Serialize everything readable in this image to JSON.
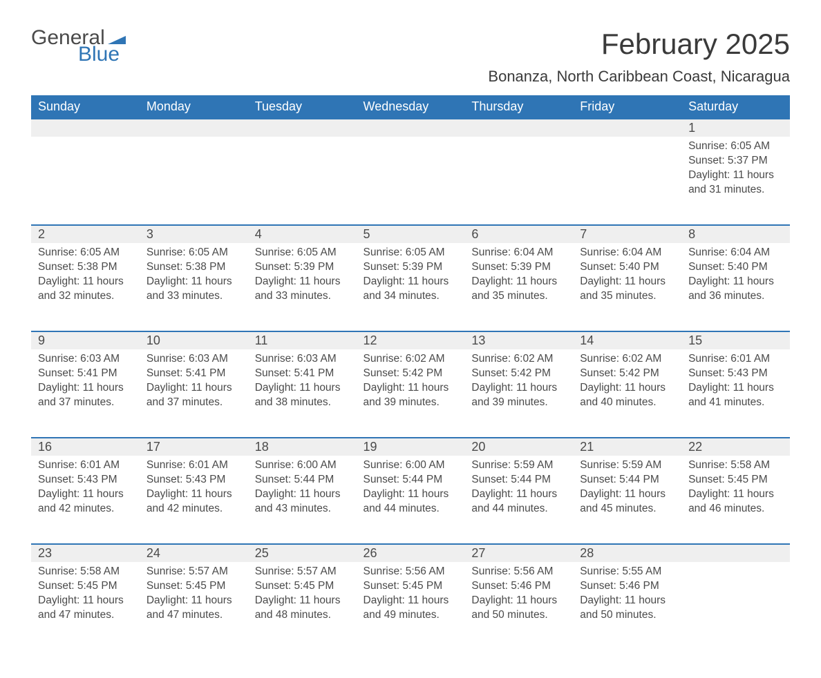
{
  "logo": {
    "text1": "General",
    "text2": "Blue",
    "flag_color": "#2f75b5"
  },
  "title": "February 2025",
  "location": "Bonanza, North Caribbean Coast, Nicaragua",
  "colors": {
    "header_bg": "#2f75b5",
    "header_text": "#ffffff",
    "daynum_bg": "#efefef",
    "daynum_border": "#2f75b5",
    "body_text": "#4a4a4a",
    "page_bg": "#ffffff"
  },
  "weekdays": [
    "Sunday",
    "Monday",
    "Tuesday",
    "Wednesday",
    "Thursday",
    "Friday",
    "Saturday"
  ],
  "weeks": [
    [
      null,
      null,
      null,
      null,
      null,
      null,
      {
        "n": "1",
        "sr": "Sunrise: 6:05 AM",
        "ss": "Sunset: 5:37 PM",
        "dl": "Daylight: 11 hours and 31 minutes."
      }
    ],
    [
      {
        "n": "2",
        "sr": "Sunrise: 6:05 AM",
        "ss": "Sunset: 5:38 PM",
        "dl": "Daylight: 11 hours and 32 minutes."
      },
      {
        "n": "3",
        "sr": "Sunrise: 6:05 AM",
        "ss": "Sunset: 5:38 PM",
        "dl": "Daylight: 11 hours and 33 minutes."
      },
      {
        "n": "4",
        "sr": "Sunrise: 6:05 AM",
        "ss": "Sunset: 5:39 PM",
        "dl": "Daylight: 11 hours and 33 minutes."
      },
      {
        "n": "5",
        "sr": "Sunrise: 6:05 AM",
        "ss": "Sunset: 5:39 PM",
        "dl": "Daylight: 11 hours and 34 minutes."
      },
      {
        "n": "6",
        "sr": "Sunrise: 6:04 AM",
        "ss": "Sunset: 5:39 PM",
        "dl": "Daylight: 11 hours and 35 minutes."
      },
      {
        "n": "7",
        "sr": "Sunrise: 6:04 AM",
        "ss": "Sunset: 5:40 PM",
        "dl": "Daylight: 11 hours and 35 minutes."
      },
      {
        "n": "8",
        "sr": "Sunrise: 6:04 AM",
        "ss": "Sunset: 5:40 PM",
        "dl": "Daylight: 11 hours and 36 minutes."
      }
    ],
    [
      {
        "n": "9",
        "sr": "Sunrise: 6:03 AM",
        "ss": "Sunset: 5:41 PM",
        "dl": "Daylight: 11 hours and 37 minutes."
      },
      {
        "n": "10",
        "sr": "Sunrise: 6:03 AM",
        "ss": "Sunset: 5:41 PM",
        "dl": "Daylight: 11 hours and 37 minutes."
      },
      {
        "n": "11",
        "sr": "Sunrise: 6:03 AM",
        "ss": "Sunset: 5:41 PM",
        "dl": "Daylight: 11 hours and 38 minutes."
      },
      {
        "n": "12",
        "sr": "Sunrise: 6:02 AM",
        "ss": "Sunset: 5:42 PM",
        "dl": "Daylight: 11 hours and 39 minutes."
      },
      {
        "n": "13",
        "sr": "Sunrise: 6:02 AM",
        "ss": "Sunset: 5:42 PM",
        "dl": "Daylight: 11 hours and 39 minutes."
      },
      {
        "n": "14",
        "sr": "Sunrise: 6:02 AM",
        "ss": "Sunset: 5:42 PM",
        "dl": "Daylight: 11 hours and 40 minutes."
      },
      {
        "n": "15",
        "sr": "Sunrise: 6:01 AM",
        "ss": "Sunset: 5:43 PM",
        "dl": "Daylight: 11 hours and 41 minutes."
      }
    ],
    [
      {
        "n": "16",
        "sr": "Sunrise: 6:01 AM",
        "ss": "Sunset: 5:43 PM",
        "dl": "Daylight: 11 hours and 42 minutes."
      },
      {
        "n": "17",
        "sr": "Sunrise: 6:01 AM",
        "ss": "Sunset: 5:43 PM",
        "dl": "Daylight: 11 hours and 42 minutes."
      },
      {
        "n": "18",
        "sr": "Sunrise: 6:00 AM",
        "ss": "Sunset: 5:44 PM",
        "dl": "Daylight: 11 hours and 43 minutes."
      },
      {
        "n": "19",
        "sr": "Sunrise: 6:00 AM",
        "ss": "Sunset: 5:44 PM",
        "dl": "Daylight: 11 hours and 44 minutes."
      },
      {
        "n": "20",
        "sr": "Sunrise: 5:59 AM",
        "ss": "Sunset: 5:44 PM",
        "dl": "Daylight: 11 hours and 44 minutes."
      },
      {
        "n": "21",
        "sr": "Sunrise: 5:59 AM",
        "ss": "Sunset: 5:44 PM",
        "dl": "Daylight: 11 hours and 45 minutes."
      },
      {
        "n": "22",
        "sr": "Sunrise: 5:58 AM",
        "ss": "Sunset: 5:45 PM",
        "dl": "Daylight: 11 hours and 46 minutes."
      }
    ],
    [
      {
        "n": "23",
        "sr": "Sunrise: 5:58 AM",
        "ss": "Sunset: 5:45 PM",
        "dl": "Daylight: 11 hours and 47 minutes."
      },
      {
        "n": "24",
        "sr": "Sunrise: 5:57 AM",
        "ss": "Sunset: 5:45 PM",
        "dl": "Daylight: 11 hours and 47 minutes."
      },
      {
        "n": "25",
        "sr": "Sunrise: 5:57 AM",
        "ss": "Sunset: 5:45 PM",
        "dl": "Daylight: 11 hours and 48 minutes."
      },
      {
        "n": "26",
        "sr": "Sunrise: 5:56 AM",
        "ss": "Sunset: 5:45 PM",
        "dl": "Daylight: 11 hours and 49 minutes."
      },
      {
        "n": "27",
        "sr": "Sunrise: 5:56 AM",
        "ss": "Sunset: 5:46 PM",
        "dl": "Daylight: 11 hours and 50 minutes."
      },
      {
        "n": "28",
        "sr": "Sunrise: 5:55 AM",
        "ss": "Sunset: 5:46 PM",
        "dl": "Daylight: 11 hours and 50 minutes."
      },
      null
    ]
  ]
}
